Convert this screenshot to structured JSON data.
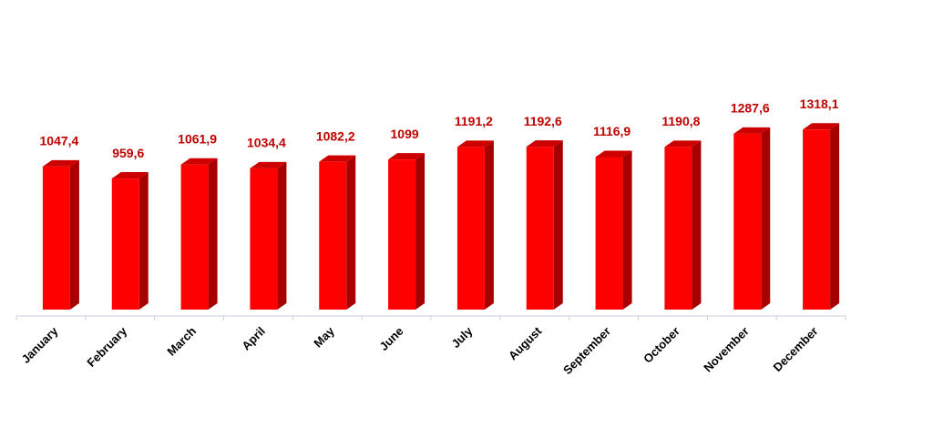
{
  "chart_data": {
    "type": "bar3d",
    "categories": [
      "January",
      "February",
      "March",
      "April",
      "May",
      "June",
      "July",
      "August",
      "September",
      "October",
      "November",
      "December"
    ],
    "values": [
      1047.4,
      959.6,
      1061.9,
      1034.4,
      1082.2,
      1099,
      1191.2,
      1192.6,
      1116.9,
      1190.8,
      1287.6,
      1318.1
    ],
    "value_labels": [
      "1047,4",
      "959,6",
      "1061,9",
      "1034,4",
      "1082,2",
      "1099",
      "1191,2",
      "1192,6",
      "1116,9",
      "1190,8",
      "1287,6",
      "1318,1"
    ],
    "color": "#ff0000"
  }
}
